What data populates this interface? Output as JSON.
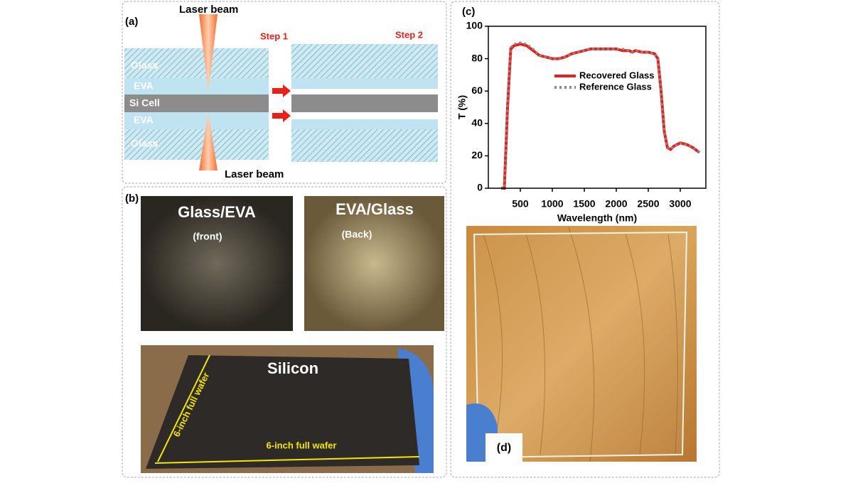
{
  "panel_a": {
    "label": "(a)",
    "laser_top": "Laser beam",
    "laser_bottom": "Laser beam",
    "step1": "Step 1",
    "step2": "Step 2",
    "layers": [
      "Glass",
      "EVA",
      "Si Cell",
      "EVA",
      "Glass"
    ]
  },
  "panel_b": {
    "label": "(b)",
    "photo1_title": "Glass/EVA",
    "photo1_note": "(front)",
    "photo2_title": "EVA/Glass",
    "photo2_note": "(Back)",
    "photo3_title": "Silicon",
    "dim1": "6-inch full wafer",
    "dim2": "6-inch full wafer"
  },
  "chart_data": {
    "type": "line",
    "label": "(c)",
    "x_label": "Wavelength (nm)",
    "y_label": "T (%)",
    "x": [
      200,
      250,
      300,
      350,
      400,
      500,
      600,
      700,
      800,
      900,
      1000,
      1100,
      1200,
      1300,
      1400,
      1500,
      1600,
      1700,
      1800,
      1900,
      2000,
      2100,
      2200,
      2250,
      2300,
      2400,
      2500,
      2600,
      2650,
      2700,
      2750,
      2800,
      2850,
      2900,
      3000,
      3100,
      3200,
      3300
    ],
    "series": [
      {
        "name": "Recovered Glass",
        "color": "#e8201a",
        "dash": "solid",
        "values": [
          0,
          0,
          50,
          86,
          88,
          89,
          88,
          85,
          82,
          81,
          80,
          80,
          81,
          83,
          84,
          85,
          86,
          86,
          86,
          86,
          86,
          85,
          85,
          84,
          85,
          84,
          84,
          83,
          80,
          60,
          35,
          25,
          24,
          26,
          28,
          27,
          25,
          22
        ]
      },
      {
        "name": "Reference Glass",
        "color": "#8a8a8a",
        "dash": "dotted",
        "values": [
          0,
          0,
          52,
          87,
          89,
          90,
          89,
          86,
          82,
          81,
          80,
          80,
          81,
          83,
          84,
          85,
          86,
          86,
          86,
          86,
          86,
          86,
          85,
          84,
          85,
          84,
          84,
          83,
          80,
          60,
          35,
          25,
          24,
          26,
          28,
          27,
          25,
          22
        ]
      }
    ],
    "xlim": [
      0,
      3400
    ],
    "ylim": [
      0,
      100
    ],
    "xticks": [
      500,
      1000,
      1500,
      2000,
      2500,
      3000
    ],
    "yticks": [
      0,
      20,
      40,
      60,
      80,
      100
    ],
    "legend": "upper-right"
  },
  "panel_d": {
    "label": "(d)"
  }
}
